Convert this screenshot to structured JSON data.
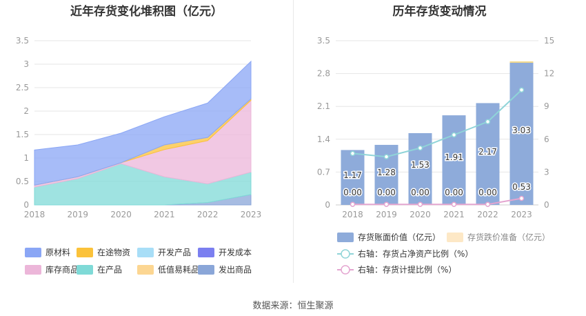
{
  "left_title": "近年存货变化堆积图（亿元）",
  "right_title": "历年存货变动情况",
  "source_label": "数据来源：恒生聚源",
  "chart_data": [
    {
      "type": "area",
      "stacked": true,
      "title": "近年存货变化堆积图（亿元）",
      "x": [
        "2018",
        "2019",
        "2020",
        "2021",
        "2022",
        "2023"
      ],
      "ylim": [
        0,
        3.5
      ],
      "y_ticks": [
        "0",
        "0.5",
        "1",
        "1.5",
        "2",
        "2.5",
        "3",
        "3.5"
      ],
      "grid": true,
      "legend_position": "bottom",
      "stack_order": [
        "发出商品",
        "在产品",
        "库存商品",
        "在途物资",
        "原材料"
      ],
      "series": [
        {
          "name": "原材料",
          "color": "#8aa6f5",
          "values": [
            0.75,
            0.68,
            0.63,
            0.6,
            0.73,
            0.8
          ]
        },
        {
          "name": "在途物资",
          "color": "#fbc23a",
          "values": [
            0.0,
            0.0,
            0.0,
            0.1,
            0.07,
            0.03
          ]
        },
        {
          "name": "开发产品",
          "color": "#a8def7",
          "values": [
            0,
            0,
            0,
            0,
            0,
            0
          ]
        },
        {
          "name": "开发成本",
          "color": "#7b7ff0",
          "values": [
            0,
            0,
            0,
            0,
            0,
            0
          ]
        },
        {
          "name": "库存商品",
          "color": "#ecb6d9",
          "values": [
            0.04,
            0.04,
            0.02,
            0.58,
            0.92,
            1.53
          ]
        },
        {
          "name": "在产品",
          "color": "#7fdad7",
          "values": [
            0.38,
            0.56,
            0.88,
            0.6,
            0.4,
            0.48
          ]
        },
        {
          "name": "低值易耗品",
          "color": "#fcd692",
          "values": [
            0,
            0,
            0,
            0,
            0,
            0
          ]
        },
        {
          "name": "发出商品",
          "color": "#8aa6d8",
          "values": [
            0.0,
            0.0,
            0.0,
            0.0,
            0.05,
            0.22
          ]
        }
      ]
    },
    {
      "type": "bar",
      "title": "历年存货变动情况",
      "categories": [
        "2018",
        "2019",
        "2020",
        "2021",
        "2022",
        "2023"
      ],
      "ylim": [
        0,
        3.5
      ],
      "y_ticks": [
        "0",
        "0.7",
        "1.4",
        "2.1",
        "2.8",
        "3.5"
      ],
      "y2lim": [
        0,
        15
      ],
      "y2_ticks": [
        "0",
        "3",
        "6",
        "9",
        "12",
        "15"
      ],
      "grid": true,
      "legend_position": "bottom",
      "series": [
        {
          "name": "存货账面价值（亿元）",
          "color": "#8eabda",
          "values": [
            1.17,
            1.28,
            1.53,
            1.91,
            2.17,
            3.03
          ],
          "labels": [
            "1.17",
            "1.28",
            "1.53",
            "1.91",
            "2.17",
            "3.03"
          ]
        },
        {
          "name": "存货跌价准备（亿元）",
          "color": "#fde8c6",
          "values": [
            0.0,
            0.0,
            0.0,
            0.0,
            0.0,
            0.53
          ],
          "labels": [
            "0.00",
            "0.00",
            "0.00",
            "0.00",
            "0.00",
            "0.53"
          ]
        },
        {
          "name": "右轴：存货占净资产比例（%）",
          "type": "line",
          "axis": "right",
          "color": "#8fd4d8",
          "values": [
            4.7,
            4.4,
            5.2,
            6.4,
            7.6,
            10.5
          ]
        },
        {
          "name": "右轴：存货计提比例（%）",
          "type": "line",
          "axis": "right",
          "color": "#e4a5d0",
          "values": [
            0.05,
            0.05,
            0.05,
            0.05,
            0.05,
            0.6
          ]
        }
      ]
    }
  ]
}
